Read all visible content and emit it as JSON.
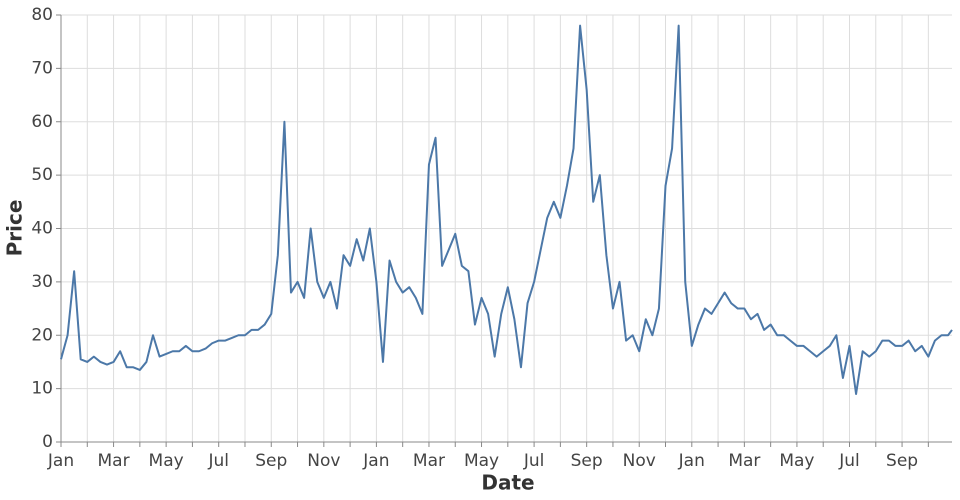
{
  "chart_data": {
    "type": "line",
    "x_label": "Date",
    "y_label": "Price",
    "x": [
      0,
      0.25,
      0.5,
      0.75,
      1,
      1.25,
      1.5,
      1.75,
      2,
      2.25,
      2.5,
      2.75,
      3,
      3.25,
      3.5,
      3.75,
      4,
      4.25,
      4.5,
      4.75,
      5,
      5.25,
      5.5,
      5.75,
      6,
      6.25,
      6.5,
      6.75,
      7,
      7.25,
      7.5,
      7.75,
      8,
      8.25,
      8.5,
      8.75,
      9,
      9.25,
      9.5,
      9.75,
      10,
      10.25,
      10.5,
      10.75,
      11,
      11.25,
      11.5,
      11.75,
      12,
      12.25,
      12.5,
      12.75,
      13,
      13.25,
      13.5,
      13.75,
      14,
      14.25,
      14.5,
      14.75,
      15,
      15.25,
      15.5,
      15.75,
      16,
      16.25,
      16.5,
      16.75,
      17,
      17.25,
      17.5,
      17.75,
      18,
      18.25,
      18.5,
      18.75,
      19,
      19.25,
      19.5,
      19.75,
      20,
      20.25,
      20.5,
      20.75,
      21,
      21.25,
      21.5,
      21.75,
      22,
      22.25,
      22.5,
      22.75,
      23,
      23.25,
      23.5,
      23.75,
      24,
      24.25,
      24.5,
      24.75,
      25,
      25.25,
      25.5,
      25.75,
      26,
      26.25,
      26.5,
      26.75,
      27,
      27.25,
      27.5,
      27.75,
      28,
      28.25,
      28.5,
      28.75,
      29,
      29.25,
      29.5,
      29.75,
      30,
      30.25,
      30.5,
      30.75,
      31,
      31.25,
      31.5,
      31.75,
      32,
      32.25,
      32.5,
      32.75,
      33,
      33.25,
      33.5,
      33.75,
      33.9
    ],
    "series": [
      {
        "name": "Price",
        "color": "#4c78a8",
        "values": [
          15.5,
          20,
          32,
          15.5,
          15,
          16,
          15,
          14.5,
          15,
          17,
          14,
          14,
          13.5,
          15,
          20,
          16,
          16.5,
          17,
          17,
          18,
          17,
          17,
          17.5,
          18.5,
          19,
          19,
          19.5,
          20,
          20,
          21,
          21,
          22,
          24,
          35,
          60,
          28,
          30,
          27,
          40,
          30,
          27,
          30,
          25,
          35,
          33,
          38,
          34,
          40,
          30,
          15,
          34,
          30,
          28,
          29,
          27,
          24,
          52,
          57,
          33,
          36,
          39,
          33,
          32,
          22,
          27,
          24,
          16,
          24,
          29,
          23,
          14,
          26,
          30,
          36,
          42,
          45,
          42,
          48,
          55,
          78,
          66,
          45,
          50,
          35,
          25,
          30,
          19,
          20,
          17,
          23,
          20,
          25,
          48,
          55,
          78,
          30,
          18,
          22,
          25,
          24,
          26,
          28,
          26,
          25,
          25,
          23,
          24,
          21,
          22,
          20,
          20,
          19,
          18,
          18,
          17,
          16,
          17,
          18,
          20,
          12,
          18,
          9,
          17,
          16,
          17,
          19,
          19,
          18,
          18,
          19,
          17,
          18,
          16,
          19,
          20,
          20,
          21
        ]
      }
    ],
    "xlim": [
      0,
      33.9
    ],
    "xticks": [
      {
        "value": 0,
        "label": "Jan"
      },
      {
        "value": 1,
        "label": null
      },
      {
        "value": 2,
        "label": "Mar"
      },
      {
        "value": 3,
        "label": null
      },
      {
        "value": 4,
        "label": "May"
      },
      {
        "value": 5,
        "label": null
      },
      {
        "value": 6,
        "label": "Jul"
      },
      {
        "value": 7,
        "label": null
      },
      {
        "value": 8,
        "label": "Sep"
      },
      {
        "value": 9,
        "label": null
      },
      {
        "value": 10,
        "label": "Nov"
      },
      {
        "value": 11,
        "label": null
      },
      {
        "value": 12,
        "label": "Jan"
      },
      {
        "value": 13,
        "label": null
      },
      {
        "value": 14,
        "label": "Mar"
      },
      {
        "value": 15,
        "label": null
      },
      {
        "value": 16,
        "label": "May"
      },
      {
        "value": 17,
        "label": null
      },
      {
        "value": 18,
        "label": "Jul"
      },
      {
        "value": 19,
        "label": null
      },
      {
        "value": 20,
        "label": "Sep"
      },
      {
        "value": 21,
        "label": null
      },
      {
        "value": 22,
        "label": "Nov"
      },
      {
        "value": 23,
        "label": null
      },
      {
        "value": 24,
        "label": "Jan"
      },
      {
        "value": 25,
        "label": null
      },
      {
        "value": 26,
        "label": "Mar"
      },
      {
        "value": 27,
        "label": null
      },
      {
        "value": 28,
        "label": "May"
      },
      {
        "value": 29,
        "label": null
      },
      {
        "value": 30,
        "label": "Jul"
      },
      {
        "value": 31,
        "label": null
      },
      {
        "value": 32,
        "label": "Sep"
      },
      {
        "value": 33,
        "label": null
      }
    ],
    "ylim": [
      0,
      80
    ],
    "yticks": [
      0,
      10,
      20,
      30,
      40,
      50,
      60,
      70,
      80
    ],
    "grid": true
  }
}
